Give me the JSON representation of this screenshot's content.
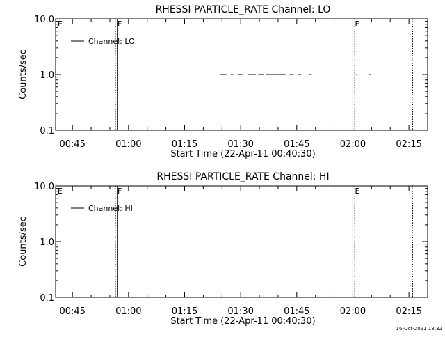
{
  "chart_data": [
    {
      "type": "line",
      "title": "RHESSI PARTICLE_RATE Channel: LO",
      "xlabel": "Start Time (22-Apr-11 00:40:30)",
      "ylabel": "Counts/sec",
      "yscale": "log",
      "ylim": [
        0.1,
        10.0
      ],
      "y_ticks": [
        "0.1",
        "1.0",
        "10.0"
      ],
      "xlim": [
        "00:40:30",
        "02:20:00"
      ],
      "x_ticks": [
        "00:45",
        "01:00",
        "01:15",
        "01:30",
        "01:45",
        "02:00",
        "02:15"
      ],
      "legend": {
        "placement": "top-left",
        "entries": [
          "Channel: LO"
        ]
      },
      "grid": false,
      "flags": [
        {
          "label": "E",
          "time": "00:40:30",
          "style": "none"
        },
        {
          "label": "F",
          "time": "00:56:30",
          "style": "dotted"
        },
        {
          "label": "",
          "time": "00:57:00",
          "style": "solid"
        },
        {
          "label": "E",
          "time": "02:00:00",
          "style": "solid"
        },
        {
          "label": "",
          "time": "02:00:30",
          "style": "dotted"
        },
        {
          "label": "",
          "time": "02:16:00",
          "style": "dotted"
        }
      ],
      "series": [
        {
          "name": "Channel: LO",
          "value": 1.0,
          "segments": [
            [
              "00:41:40",
              "00:42:00"
            ],
            [
              "00:57:00",
              "00:57:20"
            ],
            [
              "01:24:30",
              "01:26:10"
            ],
            [
              "01:27:20",
              "01:28:00"
            ],
            [
              "01:29:10",
              "01:30:30"
            ],
            [
              "01:31:50",
              "01:34:00"
            ],
            [
              "01:34:40",
              "01:36:10"
            ],
            [
              "01:36:50",
              "01:42:00"
            ],
            [
              "01:43:10",
              "01:44:10"
            ],
            [
              "01:45:20",
              "01:46:10"
            ],
            [
              "01:48:20",
              "01:49:00"
            ],
            [
              "02:00:50",
              "02:01:10"
            ],
            [
              "02:04:20",
              "02:04:50"
            ]
          ]
        }
      ]
    },
    {
      "type": "line",
      "title": "RHESSI PARTICLE_RATE Channel: HI",
      "xlabel": "Start Time (22-Apr-11 00:40:30)",
      "ylabel": "Counts/sec",
      "yscale": "log",
      "ylim": [
        0.1,
        10.0
      ],
      "y_ticks": [
        "0.1",
        "1.0",
        "10.0"
      ],
      "xlim": [
        "00:40:30",
        "02:20:00"
      ],
      "x_ticks": [
        "00:45",
        "01:00",
        "01:15",
        "01:30",
        "01:45",
        "02:00",
        "02:15"
      ],
      "legend": {
        "placement": "top-left",
        "entries": [
          "Channel: HI"
        ]
      },
      "grid": false,
      "flags": [
        {
          "label": "E",
          "time": "00:40:30",
          "style": "none"
        },
        {
          "label": "F",
          "time": "00:56:30",
          "style": "dotted"
        },
        {
          "label": "",
          "time": "00:57:00",
          "style": "solid"
        },
        {
          "label": "E",
          "time": "02:00:00",
          "style": "solid"
        },
        {
          "label": "",
          "time": "02:00:30",
          "style": "dotted"
        },
        {
          "label": "",
          "time": "02:16:00",
          "style": "dotted"
        }
      ],
      "series": [
        {
          "name": "Channel: HI",
          "value": 1.0,
          "segments": []
        }
      ]
    }
  ],
  "footer": {
    "timestamp": "16-Oct-2021 18:32"
  }
}
